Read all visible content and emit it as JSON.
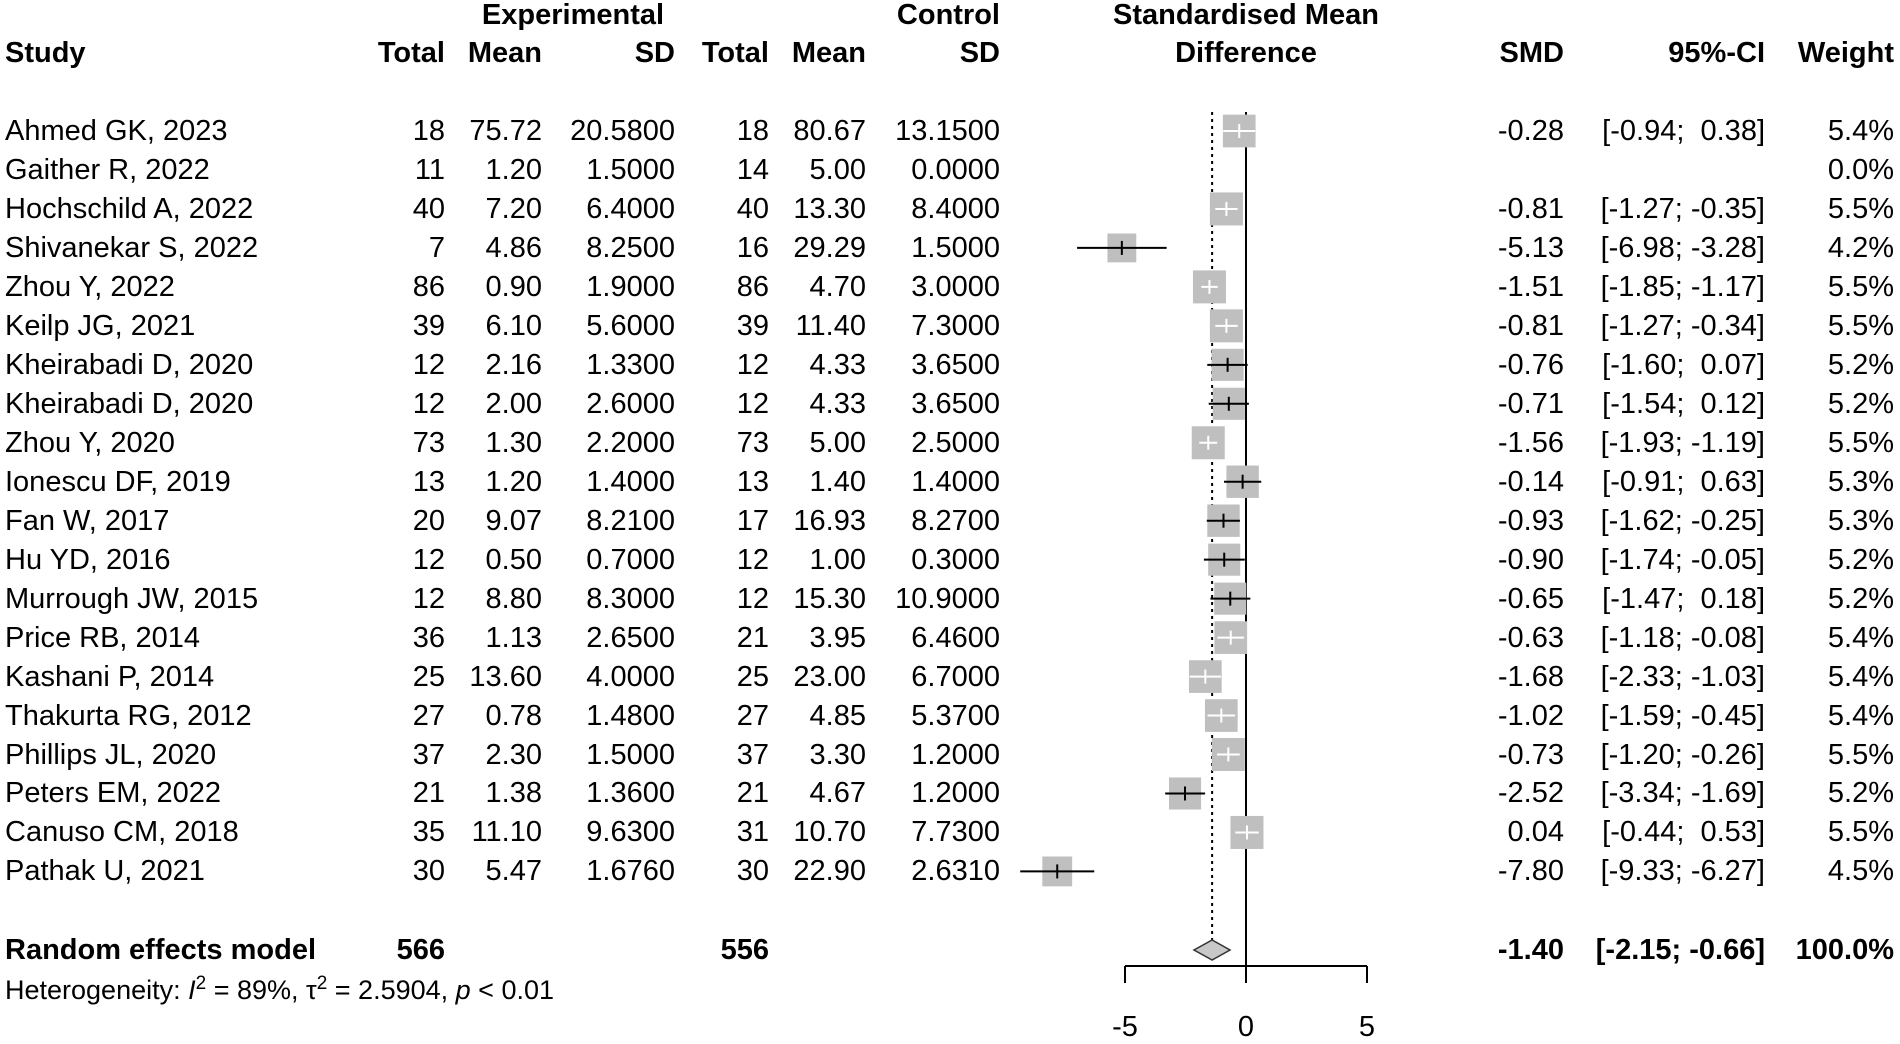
{
  "headers": {
    "study": "Study",
    "experimental": "Experimental",
    "control": "Control",
    "total": "Total",
    "mean": "Mean",
    "sd": "SD",
    "plot_title_1": "Standardised Mean",
    "plot_title_2": "Difference",
    "smd": "SMD",
    "ci": "95%-CI",
    "weight": "Weight"
  },
  "chart_data": {
    "type": "forest",
    "title": "Standardised Mean Difference",
    "xlim": [
      -5,
      5
    ],
    "xticks": [
      "-5",
      "0",
      "5"
    ],
    "studies": [
      {
        "study": "Ahmed GK, 2023",
        "e_total": "18",
        "e_mean": "75.72",
        "e_sd": "20.5800",
        "c_total": "18",
        "c_mean": "80.67",
        "c_sd": "13.1500",
        "smd": -0.28,
        "lo": -0.94,
        "hi": 0.38,
        "smd_text": "-0.28",
        "ci_text": "[-0.94;  0.38]",
        "weight": 5.4,
        "weight_text": "5.4%"
      },
      {
        "study": "Gaither R, 2022",
        "e_total": "11",
        "e_mean": "1.20",
        "e_sd": "1.5000",
        "c_total": "14",
        "c_mean": "5.00",
        "c_sd": "0.0000",
        "smd": null,
        "lo": null,
        "hi": null,
        "smd_text": "",
        "ci_text": "",
        "weight": 0,
        "weight_text": "0.0%"
      },
      {
        "study": "Hochschild A, 2022",
        "e_total": "40",
        "e_mean": "7.20",
        "e_sd": "6.4000",
        "c_total": "40",
        "c_mean": "13.30",
        "c_sd": "8.4000",
        "smd": -0.81,
        "lo": -1.27,
        "hi": -0.35,
        "smd_text": "-0.81",
        "ci_text": "[-1.27; -0.35]",
        "weight": 5.5,
        "weight_text": "5.5%"
      },
      {
        "study": "Shivanekar S, 2022",
        "e_total": "7",
        "e_mean": "4.86",
        "e_sd": "8.2500",
        "c_total": "16",
        "c_mean": "29.29",
        "c_sd": "1.5000",
        "smd": -5.13,
        "lo": -6.98,
        "hi": -3.28,
        "smd_text": "-5.13",
        "ci_text": "[-6.98; -3.28]",
        "weight": 4.2,
        "weight_text": "4.2%"
      },
      {
        "study": "Zhou Y, 2022",
        "e_total": "86",
        "e_mean": "0.90",
        "e_sd": "1.9000",
        "c_total": "86",
        "c_mean": "4.70",
        "c_sd": "3.0000",
        "smd": -1.51,
        "lo": -1.85,
        "hi": -1.17,
        "smd_text": "-1.51",
        "ci_text": "[-1.85; -1.17]",
        "weight": 5.5,
        "weight_text": "5.5%"
      },
      {
        "study": "Keilp JG, 2021",
        "e_total": "39",
        "e_mean": "6.10",
        "e_sd": "5.6000",
        "c_total": "39",
        "c_mean": "11.40",
        "c_sd": "7.3000",
        "smd": -0.81,
        "lo": -1.27,
        "hi": -0.34,
        "smd_text": "-0.81",
        "ci_text": "[-1.27; -0.34]",
        "weight": 5.5,
        "weight_text": "5.5%"
      },
      {
        "study": "Kheirabadi D, 2020",
        "e_total": "12",
        "e_mean": "2.16",
        "e_sd": "1.3300",
        "c_total": "12",
        "c_mean": "4.33",
        "c_sd": "3.6500",
        "smd": -0.76,
        "lo": -1.6,
        "hi": 0.07,
        "smd_text": "-0.76",
        "ci_text": "[-1.60;  0.07]",
        "weight": 5.2,
        "weight_text": "5.2%"
      },
      {
        "study": "Kheirabadi D, 2020",
        "e_total": "12",
        "e_mean": "2.00",
        "e_sd": "2.6000",
        "c_total": "12",
        "c_mean": "4.33",
        "c_sd": "3.6500",
        "smd": -0.71,
        "lo": -1.54,
        "hi": 0.12,
        "smd_text": "-0.71",
        "ci_text": "[-1.54;  0.12]",
        "weight": 5.2,
        "weight_text": "5.2%"
      },
      {
        "study": "Zhou Y, 2020",
        "e_total": "73",
        "e_mean": "1.30",
        "e_sd": "2.2000",
        "c_total": "73",
        "c_mean": "5.00",
        "c_sd": "2.5000",
        "smd": -1.56,
        "lo": -1.93,
        "hi": -1.19,
        "smd_text": "-1.56",
        "ci_text": "[-1.93; -1.19]",
        "weight": 5.5,
        "weight_text": "5.5%"
      },
      {
        "study": "Ionescu DF, 2019",
        "e_total": "13",
        "e_mean": "1.20",
        "e_sd": "1.4000",
        "c_total": "13",
        "c_mean": "1.40",
        "c_sd": "1.4000",
        "smd": -0.14,
        "lo": -0.91,
        "hi": 0.63,
        "smd_text": "-0.14",
        "ci_text": "[-0.91;  0.63]",
        "weight": 5.3,
        "weight_text": "5.3%"
      },
      {
        "study": "Fan W, 2017",
        "e_total": "20",
        "e_mean": "9.07",
        "e_sd": "8.2100",
        "c_total": "17",
        "c_mean": "16.93",
        "c_sd": "8.2700",
        "smd": -0.93,
        "lo": -1.62,
        "hi": -0.25,
        "smd_text": "-0.93",
        "ci_text": "[-1.62; -0.25]",
        "weight": 5.3,
        "weight_text": "5.3%"
      },
      {
        "study": "Hu YD, 2016",
        "e_total": "12",
        "e_mean": "0.50",
        "e_sd": "0.7000",
        "c_total": "12",
        "c_mean": "1.00",
        "c_sd": "0.3000",
        "smd": -0.9,
        "lo": -1.74,
        "hi": -0.05,
        "smd_text": "-0.90",
        "ci_text": "[-1.74; -0.05]",
        "weight": 5.2,
        "weight_text": "5.2%"
      },
      {
        "study": "Murrough JW, 2015",
        "e_total": "12",
        "e_mean": "8.80",
        "e_sd": "8.3000",
        "c_total": "12",
        "c_mean": "15.30",
        "c_sd": "10.9000",
        "smd": -0.65,
        "lo": -1.47,
        "hi": 0.18,
        "smd_text": "-0.65",
        "ci_text": "[-1.47;  0.18]",
        "weight": 5.2,
        "weight_text": "5.2%"
      },
      {
        "study": "Price RB, 2014",
        "e_total": "36",
        "e_mean": "1.13",
        "e_sd": "2.6500",
        "c_total": "21",
        "c_mean": "3.95",
        "c_sd": "6.4600",
        "smd": -0.63,
        "lo": -1.18,
        "hi": -0.08,
        "smd_text": "-0.63",
        "ci_text": "[-1.18; -0.08]",
        "weight": 5.4,
        "weight_text": "5.4%"
      },
      {
        "study": "Kashani P, 2014",
        "e_total": "25",
        "e_mean": "13.60",
        "e_sd": "4.0000",
        "c_total": "25",
        "c_mean": "23.00",
        "c_sd": "6.7000",
        "smd": -1.68,
        "lo": -2.33,
        "hi": -1.03,
        "smd_text": "-1.68",
        "ci_text": "[-2.33; -1.03]",
        "weight": 5.4,
        "weight_text": "5.4%"
      },
      {
        "study": "Thakurta RG, 2012",
        "e_total": "27",
        "e_mean": "0.78",
        "e_sd": "1.4800",
        "c_total": "27",
        "c_mean": "4.85",
        "c_sd": "5.3700",
        "smd": -1.02,
        "lo": -1.59,
        "hi": -0.45,
        "smd_text": "-1.02",
        "ci_text": "[-1.59; -0.45]",
        "weight": 5.4,
        "weight_text": "5.4%"
      },
      {
        "study": "Phillips JL, 2020",
        "e_total": "37",
        "e_mean": "2.30",
        "e_sd": "1.5000",
        "c_total": "37",
        "c_mean": "3.30",
        "c_sd": "1.2000",
        "smd": -0.73,
        "lo": -1.2,
        "hi": -0.26,
        "smd_text": "-0.73",
        "ci_text": "[-1.20; -0.26]",
        "weight": 5.5,
        "weight_text": "5.5%"
      },
      {
        "study": "Peters EM, 2022",
        "e_total": "21",
        "e_mean": "1.38",
        "e_sd": "1.3600",
        "c_total": "21",
        "c_mean": "4.67",
        "c_sd": "1.2000",
        "smd": -2.52,
        "lo": -3.34,
        "hi": -1.69,
        "smd_text": "-2.52",
        "ci_text": "[-3.34; -1.69]",
        "weight": 5.2,
        "weight_text": "5.2%"
      },
      {
        "study": "Canuso CM, 2018",
        "e_total": "35",
        "e_mean": "11.10",
        "e_sd": "9.6300",
        "c_total": "31",
        "c_mean": "10.70",
        "c_sd": "7.7300",
        "smd": 0.04,
        "lo": -0.44,
        "hi": 0.53,
        "smd_text": "0.04",
        "ci_text": "[-0.44;  0.53]",
        "weight": 5.5,
        "weight_text": "5.5%"
      },
      {
        "study": "Pathak U, 2021",
        "e_total": "30",
        "e_mean": "5.47",
        "e_sd": "1.6760",
        "c_total": "30",
        "c_mean": "22.90",
        "c_sd": "2.6310",
        "smd": -7.8,
        "lo": -9.33,
        "hi": -6.27,
        "smd_text": "-7.80",
        "ci_text": "[-9.33; -6.27]",
        "weight": 4.5,
        "weight_text": "4.5%"
      }
    ],
    "pooled": {
      "label": "Random effects model",
      "e_total": "566",
      "c_total": "556",
      "smd": -1.4,
      "lo": -2.15,
      "hi": -0.66,
      "smd_text": "-1.40",
      "ci_text": "[-2.15; -0.66]",
      "weight_text": "100.0%"
    },
    "heterogeneity": {
      "prefix": "Heterogeneity: ",
      "i_sym": "I",
      "sq": "2",
      "i2_text": " = 89%, ",
      "tau_sym": "τ",
      "tau2_text": " = 2.5904, ",
      "p_sym": "p",
      "p_text": " < 0.01"
    }
  }
}
